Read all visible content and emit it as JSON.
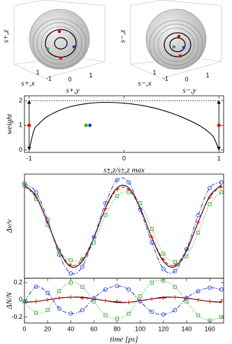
{
  "chart_data": [
    {
      "type": "sphere",
      "zlabel": "s+,z",
      "xlabel": "s+,x",
      "ylabel": "s+,y",
      "xticks": [
        1
      ],
      "yticks": [
        -1,
        0,
        1
      ]
    },
    {
      "type": "sphere",
      "zlabel": "s−,z",
      "xlabel": "s−,x",
      "ylabel": "s−,y",
      "xticks": [
        1
      ],
      "yticks": [
        -1,
        0,
        1
      ]
    },
    {
      "type": "line",
      "xlabel": "s±,z/s±,z max",
      "ylabel": "weight",
      "xlim": [
        -1.05,
        1.05
      ],
      "ylim": [
        -0.1,
        2.2
      ],
      "xticks": [
        -1,
        0,
        1
      ],
      "yticks": [
        0,
        1,
        2
      ],
      "series": [
        {
          "color": "#000000",
          "dash": "solid",
          "x": [
            -1,
            -0.95,
            -0.9,
            -0.8,
            -0.6,
            -0.4,
            -0.2,
            0,
            0.2,
            0.4,
            0.6,
            0.8,
            0.9,
            0.95,
            1
          ],
          "values": [
            0,
            0.8,
            1.05,
            1.38,
            1.72,
            1.88,
            1.93,
            1.9,
            1.8,
            1.62,
            1.35,
            0.98,
            0.7,
            0.48,
            0
          ]
        },
        {
          "color": "#000000",
          "dash": "dotted",
          "x": [
            -1,
            1
          ],
          "values": [
            2,
            2
          ]
        },
        {
          "color": "#e00000",
          "marker": "dot",
          "x": [
            -1
          ],
          "values": [
            1
          ]
        },
        {
          "color": "#2fa82f",
          "marker": "dot",
          "x": [
            -0.4
          ],
          "values": [
            1
          ]
        },
        {
          "color": "#1a3fd6",
          "marker": "dot",
          "x": [
            -0.36
          ],
          "values": [
            1
          ]
        },
        {
          "color": "#e00000",
          "marker": "dot",
          "x": [
            1
          ],
          "values": [
            1
          ]
        }
      ],
      "arrows": [
        {
          "x": -1,
          "from": 0,
          "to": 2
        },
        {
          "x": 1,
          "from": 0,
          "to": 2
        }
      ]
    },
    {
      "type": "line",
      "ylabel": "Δν/ν",
      "xlim": [
        0,
        172
      ],
      "ylim": [
        -0.95,
        0.95
      ],
      "x": [
        0,
        10,
        20,
        30,
        40,
        50,
        60,
        70,
        80,
        90,
        100,
        110,
        120,
        130,
        140,
        150,
        160,
        170
      ],
      "series": [
        {
          "color": "#000000",
          "dash": "solid",
          "values": [
            0.75,
            0.55,
            0.07,
            -0.45,
            -0.74,
            -0.64,
            -0.21,
            0.33,
            0.7,
            0.7,
            0.33,
            -0.21,
            -0.64,
            -0.74,
            -0.45,
            0.07,
            0.55,
            0.75
          ]
        },
        {
          "color": "#e00000",
          "dash": "dashed",
          "marker": "+",
          "values": [
            0.72,
            0.53,
            0.07,
            -0.43,
            -0.71,
            -0.61,
            -0.2,
            0.32,
            0.67,
            0.67,
            0.32,
            -0.2,
            -0.61,
            -0.71,
            -0.43,
            0.07,
            0.53,
            0.72
          ]
        },
        {
          "color": "#1a3fd6",
          "dash": "dashdot",
          "marker": "o",
          "values": [
            0.78,
            0.62,
            0.12,
            -0.52,
            -0.86,
            -0.74,
            -0.2,
            0.42,
            0.84,
            0.8,
            0.3,
            -0.3,
            -0.78,
            -0.82,
            -0.42,
            0.2,
            0.7,
            0.8
          ]
        },
        {
          "color": "#2fa82f",
          "dash": "dotted",
          "marker": "s",
          "values": [
            0.75,
            0.5,
            0.02,
            -0.45,
            -0.62,
            -0.6,
            -0.3,
            0.2,
            0.55,
            0.62,
            0.42,
            -0.05,
            -0.5,
            -0.65,
            -0.55,
            -0.12,
            0.4,
            0.62
          ]
        }
      ]
    },
    {
      "type": "line",
      "xlabel": "time [ps]",
      "ylabel": "ΔN/N",
      "xlim": [
        0,
        172
      ],
      "ylim": [
        -0.27,
        0.25
      ],
      "xticks": [
        0,
        20,
        40,
        60,
        80,
        100,
        120,
        140,
        160
      ],
      "yticks": [
        -0.2,
        0,
        0.2
      ],
      "x": [
        0,
        10,
        20,
        30,
        40,
        50,
        60,
        70,
        80,
        90,
        100,
        110,
        120,
        130,
        140,
        150,
        160,
        170
      ],
      "series": [
        {
          "color": "#000000",
          "dash": "solid",
          "values": [
            -0.03,
            -0.02,
            0,
            0.02,
            0.03,
            0.03,
            0.01,
            -0.01,
            -0.03,
            -0.03,
            -0.01,
            0.01,
            0.03,
            0.03,
            0.02,
            0,
            -0.02,
            -0.03
          ]
        },
        {
          "color": "#e00000",
          "dash": "dashed",
          "marker": "+",
          "values": [
            -0.02,
            -0.02,
            0,
            0.02,
            0.03,
            0.02,
            0.01,
            -0.01,
            -0.02,
            -0.03,
            -0.01,
            0.01,
            0.02,
            0.03,
            0.02,
            0,
            -0.02,
            -0.02
          ]
        },
        {
          "color": "#1a3fd6",
          "dash": "dashdot",
          "marker": "o",
          "values": [
            -0.02,
            0.15,
            0.08,
            -0.1,
            -0.16,
            -0.12,
            0.02,
            0.12,
            0.16,
            0.12,
            -0.02,
            -0.14,
            -0.17,
            -0.12,
            0.02,
            0.1,
            0.14,
            0.12
          ]
        },
        {
          "color": "#2fa82f",
          "dash": "dotted",
          "marker": "s",
          "values": [
            -0.02,
            -0.15,
            -0.12,
            0.1,
            0.2,
            0.15,
            -0.02,
            -0.18,
            -0.22,
            -0.16,
            0.04,
            0.2,
            0.22,
            0.15,
            -0.02,
            -0.18,
            -0.24,
            -0.2
          ]
        }
      ]
    }
  ]
}
